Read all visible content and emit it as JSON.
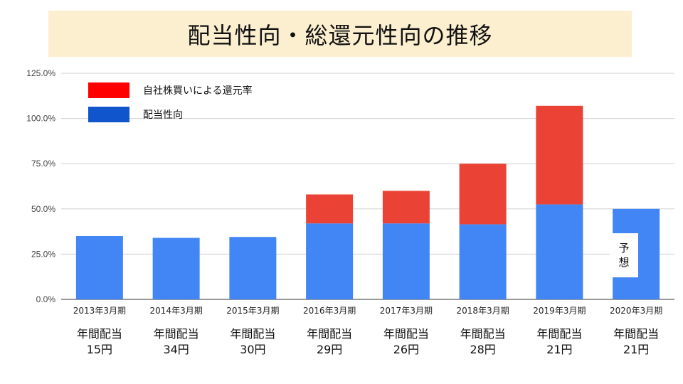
{
  "title": "配当性向・総還元性向の推移",
  "colors": {
    "payout": "#4285f4",
    "buyback": "#ea4335",
    "legend_payout": "#1155cc",
    "legend_buyback": "#ff0000",
    "title_bg": "#fcefd0"
  },
  "chart_data": {
    "type": "bar",
    "stacked": true,
    "categories": [
      "2013年3月期",
      "2014年3月期",
      "2015年3月期",
      "2016年3月期",
      "2017年3月期",
      "2018年3月期",
      "2019年3月期",
      "2020年3月期"
    ],
    "series": [
      {
        "name": "配当性向",
        "values": [
          35.0,
          34.0,
          34.5,
          42.0,
          42.0,
          41.5,
          52.5,
          50.0
        ]
      },
      {
        "name": "自社株買いによる還元率",
        "values": [
          0,
          0,
          0,
          16.0,
          18.0,
          33.5,
          54.5,
          0
        ]
      }
    ],
    "yticks": [
      "0.0%",
      "25.0%",
      "50.0%",
      "75.0%",
      "100.0%",
      "125.0%"
    ],
    "ylim": [
      0,
      125
    ],
    "legend": {
      "placement": "top-left",
      "order": [
        "自社株買いによる還元率",
        "配当性向"
      ]
    },
    "grid": true,
    "forecast_label": [
      "予",
      "想"
    ],
    "dividend_notes": [
      {
        "label": "年間配当",
        "value": "15円"
      },
      {
        "label": "年間配当",
        "value": "34円"
      },
      {
        "label": "年間配当",
        "value": "30円"
      },
      {
        "label": "年間配当",
        "value": "29円"
      },
      {
        "label": "年間配当",
        "value": "26円"
      },
      {
        "label": "年間配当",
        "value": "28円"
      },
      {
        "label": "年間配当",
        "value": "21円"
      },
      {
        "label": "年間配当",
        "value": "21円"
      }
    ]
  }
}
